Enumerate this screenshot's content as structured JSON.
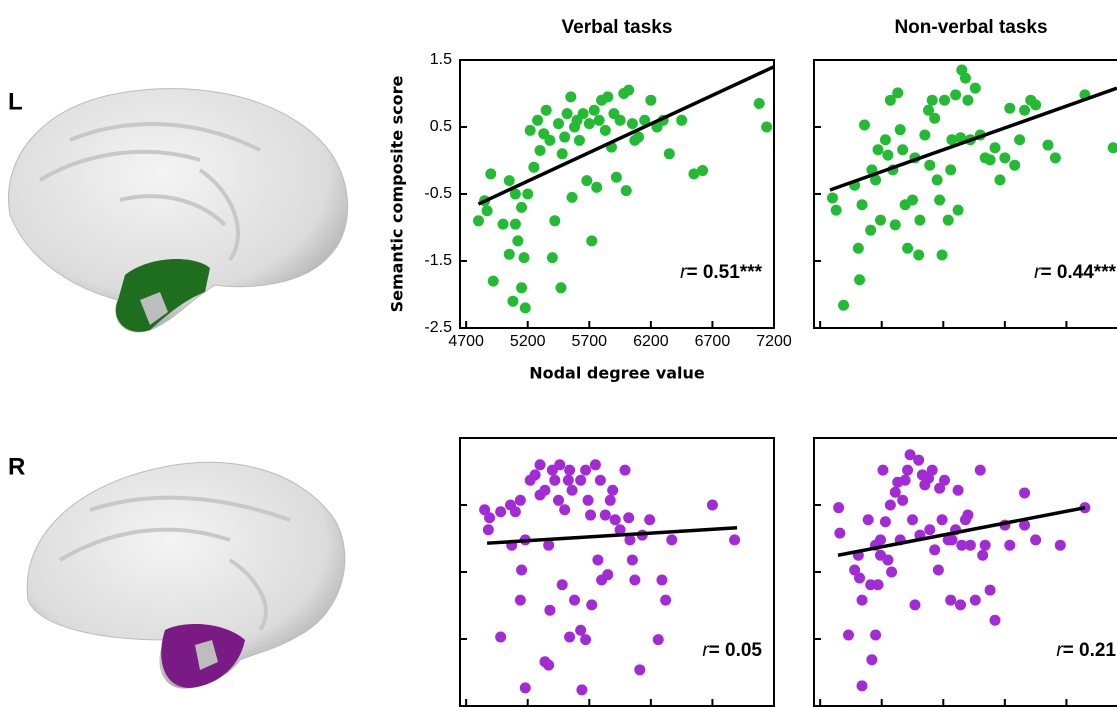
{
  "panel_labels": [
    "L",
    "R"
  ],
  "chart_data": [
    {
      "type": "scatter",
      "title": "Verbal tasks",
      "x_label": "Nodal degree value",
      "y_label": "Semantic composite score",
      "xlim": [
        4650,
        7200
      ],
      "ylim": [
        -2.5,
        1.5
      ],
      "xticks": [
        4700,
        5200,
        5700,
        6200,
        6700,
        7200
      ],
      "yticks": [
        1.5,
        0.5,
        -0.5,
        -1.5,
        -2.5
      ],
      "tick_labels": true,
      "x": [
        4800,
        4850,
        4870,
        4900,
        4920,
        5000,
        5050,
        5050,
        5080,
        5100,
        5100,
        5120,
        5150,
        5180,
        5170,
        5150,
        5200,
        5220,
        5250,
        5280,
        5300,
        5330,
        5350,
        5380,
        5400,
        5420,
        5450,
        5470,
        5480,
        5500,
        5520,
        5550,
        5560,
        5580,
        5600,
        5620,
        5650,
        5680,
        5700,
        5720,
        5740,
        5760,
        5780,
        5800,
        5830,
        5850,
        5880,
        5900,
        5920,
        5950,
        5980,
        6000,
        6020,
        6050,
        6070,
        6100,
        6150,
        6200,
        6250,
        6300,
        6350,
        6450,
        6550,
        6620,
        7080,
        7140
      ],
      "series": [
        {
          "color": "#22bb33",
          "values": [
            -0.9,
            -0.6,
            -0.75,
            -0.2,
            -1.8,
            -0.95,
            -0.3,
            -1.4,
            -2.1,
            -0.5,
            -0.95,
            -1.2,
            -1.9,
            -2.2,
            -1.45,
            -0.7,
            -0.5,
            0.45,
            -0.1,
            0.6,
            0.15,
            0.4,
            0.75,
            0.3,
            -1.45,
            -0.9,
            0.55,
            -1.9,
            0.1,
            0.35,
            0.7,
            0.95,
            -0.55,
            0.5,
            0.6,
            0.3,
            0.7,
            -0.3,
            0.55,
            -1.2,
            0.75,
            -0.4,
            0.6,
            0.9,
            0.45,
            0.95,
            0.2,
            0.7,
            -0.25,
            0.6,
            1.0,
            -0.45,
            1.05,
            0.55,
            0.3,
            0.35,
            0.6,
            0.9,
            0.5,
            0.6,
            0.1,
            0.6,
            -0.2,
            -0.15,
            0.85,
            0.5
          ]
        }
      ],
      "fit": {
        "x": [
          4800,
          7200
        ],
        "y": [
          -0.65,
          1.4
        ]
      },
      "annotation": {
        "symbol": "r",
        "text": "= 0.51***"
      }
    },
    {
      "type": "scatter",
      "title": "Non-verbal tasks",
      "xlim": [
        4650,
        7200
      ],
      "ylim": [
        -2.5,
        1.5
      ],
      "xticks": [
        4700,
        5200,
        5700,
        6200,
        6700,
        7200
      ],
      "yticks": [
        1.5,
        0.5,
        -0.5,
        -1.5,
        -2.5
      ],
      "tick_labels": false,
      "x": [
        4800,
        4830,
        4890,
        4980,
        5010,
        5020,
        5040,
        5060,
        5110,
        5120,
        5150,
        5170,
        5190,
        5230,
        5250,
        5270,
        5290,
        5310,
        5330,
        5350,
        5370,
        5390,
        5410,
        5450,
        5470,
        5500,
        5510,
        5550,
        5580,
        5590,
        5610,
        5630,
        5650,
        5670,
        5690,
        5710,
        5740,
        5760,
        5770,
        5800,
        5820,
        5840,
        5850,
        5880,
        5900,
        5920,
        5960,
        6000,
        6040,
        6080,
        6120,
        6160,
        6200,
        6240,
        6280,
        6320,
        6360,
        6410,
        6450,
        6550,
        6610,
        6850,
        7080
      ],
      "series": [
        {
          "color": "#22bb33",
          "values": [
            -0.56,
            -0.74,
            -2.16,
            -0.37,
            -1.31,
            -1.78,
            -0.66,
            0.53,
            -1.04,
            -0.14,
            -0.29,
            0.16,
            -0.89,
            0.31,
            0.08,
            0.9,
            -0.14,
            -0.96,
            1.01,
            0.46,
            0.16,
            -0.66,
            -1.31,
            -0.59,
            0.04,
            -1.41,
            -0.89,
            0.38,
            0.75,
            -0.07,
            0.9,
            0.63,
            -0.29,
            -0.59,
            -1.41,
            0.9,
            -0.89,
            -0.14,
            0.31,
            0.98,
            -0.74,
            0.34,
            1.35,
            1.23,
            0.9,
            0.31,
            1.08,
            0.38,
            0.04,
            0.01,
            0.19,
            -0.29,
            0.04,
            0.78,
            -0.07,
            0.31,
            0.75,
            0.9,
            0.83,
            0.23,
            0.04,
            0.98,
            0.19
          ]
        }
      ],
      "fit": {
        "x": [
          4780,
          7110
        ],
        "y": [
          -0.44,
          1.08
        ]
      },
      "annotation": {
        "symbol": "r",
        "text": "= 0.44***"
      }
    },
    {
      "type": "scatter",
      "xlim": [
        4650,
        7200
      ],
      "ylim": [
        -2.5,
        1.5
      ],
      "xticks": [
        4700,
        5200,
        5700,
        6200,
        6700,
        7200
      ],
      "yticks": [
        1.5,
        0.5,
        -0.5,
        -1.5,
        -2.5
      ],
      "tick_labels": false,
      "x": [
        4850,
        4880,
        4890,
        4980,
        5060,
        5070,
        5100,
        5140,
        5140,
        5150,
        5180,
        5220,
        5260,
        5300,
        5300,
        5340,
        5370,
        5380,
        5400,
        5420,
        5450,
        5460,
        5480,
        5500,
        5530,
        5540,
        5560,
        5580,
        5630,
        5630,
        5640,
        5670,
        5690,
        5710,
        5720,
        5750,
        5770,
        5790,
        5800,
        5830,
        5850,
        5870,
        5890,
        5910,
        5950,
        5990,
        6020,
        6030,
        6050,
        6070,
        6110,
        6130,
        6190,
        6260,
        6290,
        6320,
        6370,
        6700,
        6880,
        5370,
        5340,
        4980,
        5180,
        5670,
        5540
      ],
      "series": [
        {
          "color": "#a22bd6",
          "values": [
            0.43,
            0.13,
            0.31,
            0.4,
            0.5,
            -0.1,
            0.4,
            0.57,
            -0.92,
            -0.47,
            -0.02,
            0.87,
            0.95,
            1.1,
            0.65,
            0.72,
            -0.1,
            -1.07,
            1.02,
            0.87,
            0.57,
            1.1,
            -0.69,
            0.43,
            0.87,
            1.02,
            0.72,
            -0.92,
            0.87,
            -1.37,
            -2.26,
            1.02,
            0.57,
            0.35,
            -0.99,
            1.1,
            -0.32,
            0.87,
            -0.62,
            0.35,
            -0.54,
            0.57,
            0.72,
            0.28,
            0.13,
            1.02,
            0.31,
            -0.02,
            -0.32,
            -0.62,
            -1.96,
            0.05,
            0.28,
            -1.51,
            -0.62,
            -0.92,
            -0.02,
            0.5,
            -0.02,
            -1.89,
            -1.84,
            -1.47,
            -2.23,
            -1.51,
            -1.47
          ]
        }
      ],
      "fit": {
        "x": [
          4870,
          6900
        ],
        "y": [
          -0.07,
          0.16
        ]
      },
      "annotation": {
        "symbol": "r",
        "text": "= 0.05"
      }
    },
    {
      "type": "scatter",
      "xlim": [
        4650,
        7200
      ],
      "ylim": [
        -2.5,
        1.5
      ],
      "xticks": [
        4700,
        5200,
        5700,
        6200,
        6700,
        7200
      ],
      "yticks": [
        1.5,
        0.5,
        -0.5,
        -1.5,
        -2.5
      ],
      "tick_labels": false,
      "x": [
        4850,
        4860,
        4930,
        4980,
        5010,
        5020,
        5040,
        5090,
        5110,
        5120,
        5150,
        5170,
        5190,
        5210,
        5230,
        5250,
        5270,
        5280,
        5310,
        5330,
        5350,
        5370,
        5390,
        5410,
        5430,
        5450,
        5470,
        5500,
        5510,
        5530,
        5550,
        5580,
        5590,
        5610,
        5630,
        5660,
        5670,
        5690,
        5710,
        5740,
        5760,
        5770,
        5800,
        5820,
        5840,
        5850,
        5880,
        5900,
        5920,
        5960,
        6000,
        6020,
        6040,
        6080,
        6120,
        6200,
        6240,
        6360,
        6360,
        6450,
        6650,
        6850,
        5040,
        5150,
        5190
      ],
      "series": [
        {
          "color": "#a22bd6",
          "values": [
            0.46,
            0.08,
            -1.44,
            -0.47,
            -0.25,
            -0.59,
            -0.92,
            0.28,
            -0.69,
            -1.81,
            -0.1,
            -0.69,
            -0.02,
            1.02,
            0.25,
            -0.32,
            0.5,
            -0.5,
            0.69,
            0.84,
            -0.02,
            0.57,
            0.87,
            1.02,
            1.25,
            0.28,
            -0.99,
            1.17,
            0.05,
            0.95,
            0.8,
            0.9,
            0.13,
            1.02,
            -0.17,
            -0.47,
            0.75,
            0.28,
            0.87,
            -0.02,
            -0.92,
            -0.02,
            0.13,
            0.72,
            -0.99,
            -0.1,
            0.28,
            0.35,
            -0.1,
            -0.92,
            1.02,
            -0.25,
            -0.1,
            -0.77,
            -1.22,
            0.2,
            -0.1,
            0.2,
            0.68,
            -0.02,
            -0.1,
            0.46,
            -2.2,
            -1.44,
            -0.25
          ]
        }
      ],
      "fit": {
        "x": [
          4845,
          6852
        ],
        "y": [
          -0.25,
          0.46
        ]
      },
      "annotation": {
        "symbol": "r",
        "text": "= 0.21"
      }
    }
  ]
}
